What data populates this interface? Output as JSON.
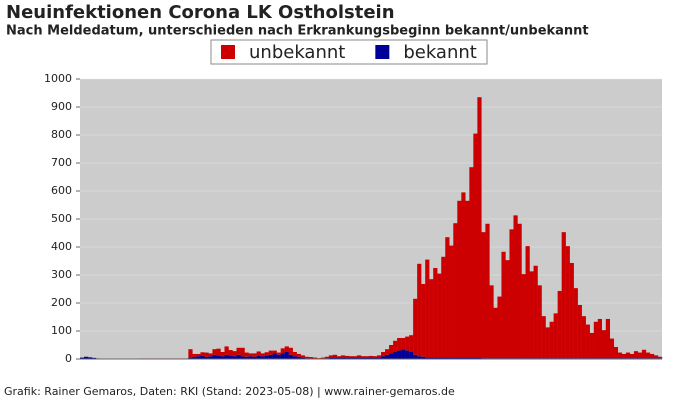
{
  "chart_data": {
    "type": "stacked-bar",
    "title": "Neuinfektionen Corona LK Ostholstein",
    "subtitle": "Nach Meldedatum, unterschieden nach Erkrankungsbeginn bekannt/unbekannt",
    "footer": "Grafik: Rainer Gemaros, Daten: RKI (Stand: 2023-05-08) | www.rainer-gemaros.de",
    "categories": [
      null,
      null,
      null,
      null,
      null,
      null,
      null,
      null,
      null,
      null,
      null,
      null,
      null,
      null,
      null,
      null,
      null,
      null,
      null,
      null,
      null,
      null,
      null,
      null,
      null,
      null,
      null,
      null,
      null,
      null,
      null,
      null,
      null,
      null,
      null,
      null,
      null,
      null,
      null,
      null,
      null,
      null,
      null,
      null,
      null,
      null,
      null,
      null,
      null,
      null,
      null,
      null,
      null,
      null,
      null,
      null,
      null,
      null,
      null,
      null,
      null,
      null,
      null,
      null,
      null,
      null,
      null,
      null,
      null,
      null,
      null,
      null,
      null,
      null,
      null,
      null,
      null,
      null,
      null,
      null,
      null,
      null,
      null,
      null,
      null,
      null,
      null,
      null,
      null,
      null,
      null,
      null,
      null,
      null,
      null,
      null,
      null,
      null,
      null,
      null,
      null,
      null,
      null,
      null,
      null,
      null,
      null,
      null,
      null,
      null,
      null,
      null,
      null,
      null,
      null,
      null,
      null,
      null,
      null,
      null,
      null,
      null,
      null,
      null,
      null,
      null,
      null,
      null,
      null,
      null,
      null,
      null,
      null,
      null,
      null,
      null,
      null,
      null,
      null,
      null,
      null,
      null,
      null,
      null,
      null
    ],
    "series": [
      {
        "name": "bekannt",
        "color": "#000099",
        "values": [
          5,
          8,
          6,
          4,
          2,
          0,
          0,
          0,
          0,
          0,
          0,
          0,
          0,
          0,
          0,
          0,
          0,
          0,
          0,
          0,
          0,
          0,
          0,
          0,
          0,
          0,
          0,
          5,
          8,
          10,
          12,
          8,
          10,
          15,
          12,
          10,
          15,
          12,
          10,
          15,
          10,
          8,
          10,
          8,
          12,
          10,
          12,
          15,
          20,
          15,
          20,
          25,
          15,
          10,
          8,
          5,
          3,
          2,
          2,
          1,
          2,
          3,
          5,
          5,
          5,
          5,
          5,
          5,
          5,
          5,
          5,
          5,
          5,
          5,
          5,
          10,
          15,
          20,
          25,
          30,
          35,
          30,
          25,
          15,
          10,
          8,
          5,
          5,
          5,
          5,
          5,
          5,
          5,
          5,
          5,
          5,
          5,
          5,
          5,
          5,
          3,
          3,
          3,
          3,
          3,
          3,
          3,
          3,
          3,
          3,
          3,
          3,
          3,
          3,
          3,
          3,
          3,
          3,
          3,
          3,
          3,
          3,
          3,
          3,
          3,
          3,
          3,
          3,
          3,
          3,
          3,
          3,
          3,
          3,
          3,
          3,
          3,
          3,
          3,
          3,
          3,
          3,
          3,
          3,
          3
        ]
      },
      {
        "name": "unbekannt",
        "color": "#cc0000",
        "values": [
          0,
          0,
          0,
          0,
          0,
          0,
          0,
          0,
          0,
          0,
          0,
          0,
          0,
          0,
          0,
          2,
          2,
          2,
          2,
          2,
          2,
          2,
          2,
          2,
          2,
          2,
          2,
          30,
          10,
          8,
          12,
          15,
          10,
          20,
          25,
          15,
          30,
          20,
          18,
          25,
          30,
          15,
          10,
          12,
          15,
          10,
          12,
          15,
          10,
          8,
          18,
          20,
          25,
          15,
          10,
          8,
          5,
          5,
          3,
          2,
          3,
          5,
          8,
          10,
          5,
          8,
          6,
          5,
          5,
          8,
          5,
          5,
          6,
          5,
          8,
          15,
          20,
          30,
          40,
          45,
          40,
          50,
          60,
          200,
          330,
          260,
          350,
          280,
          320,
          300,
          360,
          430,
          400,
          480,
          560,
          590,
          560,
          680,
          800,
          930,
          450,
          480,
          260,
          180,
          220,
          380,
          350,
          460,
          510,
          480,
          300,
          400,
          310,
          330,
          260,
          150,
          110,
          130,
          160,
          240,
          450,
          400,
          340,
          250,
          190,
          150,
          120,
          90,
          130,
          140,
          100,
          140,
          70,
          40,
          20,
          15,
          20,
          15,
          25,
          20,
          30,
          20,
          15,
          10,
          5
        ]
      }
    ],
    "legend_order": [
      "unbekannt",
      "bekannt"
    ],
    "ylim": [
      0,
      1000
    ],
    "yticks": [
      0,
      100,
      200,
      300,
      400,
      500,
      600,
      700,
      800,
      900,
      1000
    ],
    "grid": true
  }
}
